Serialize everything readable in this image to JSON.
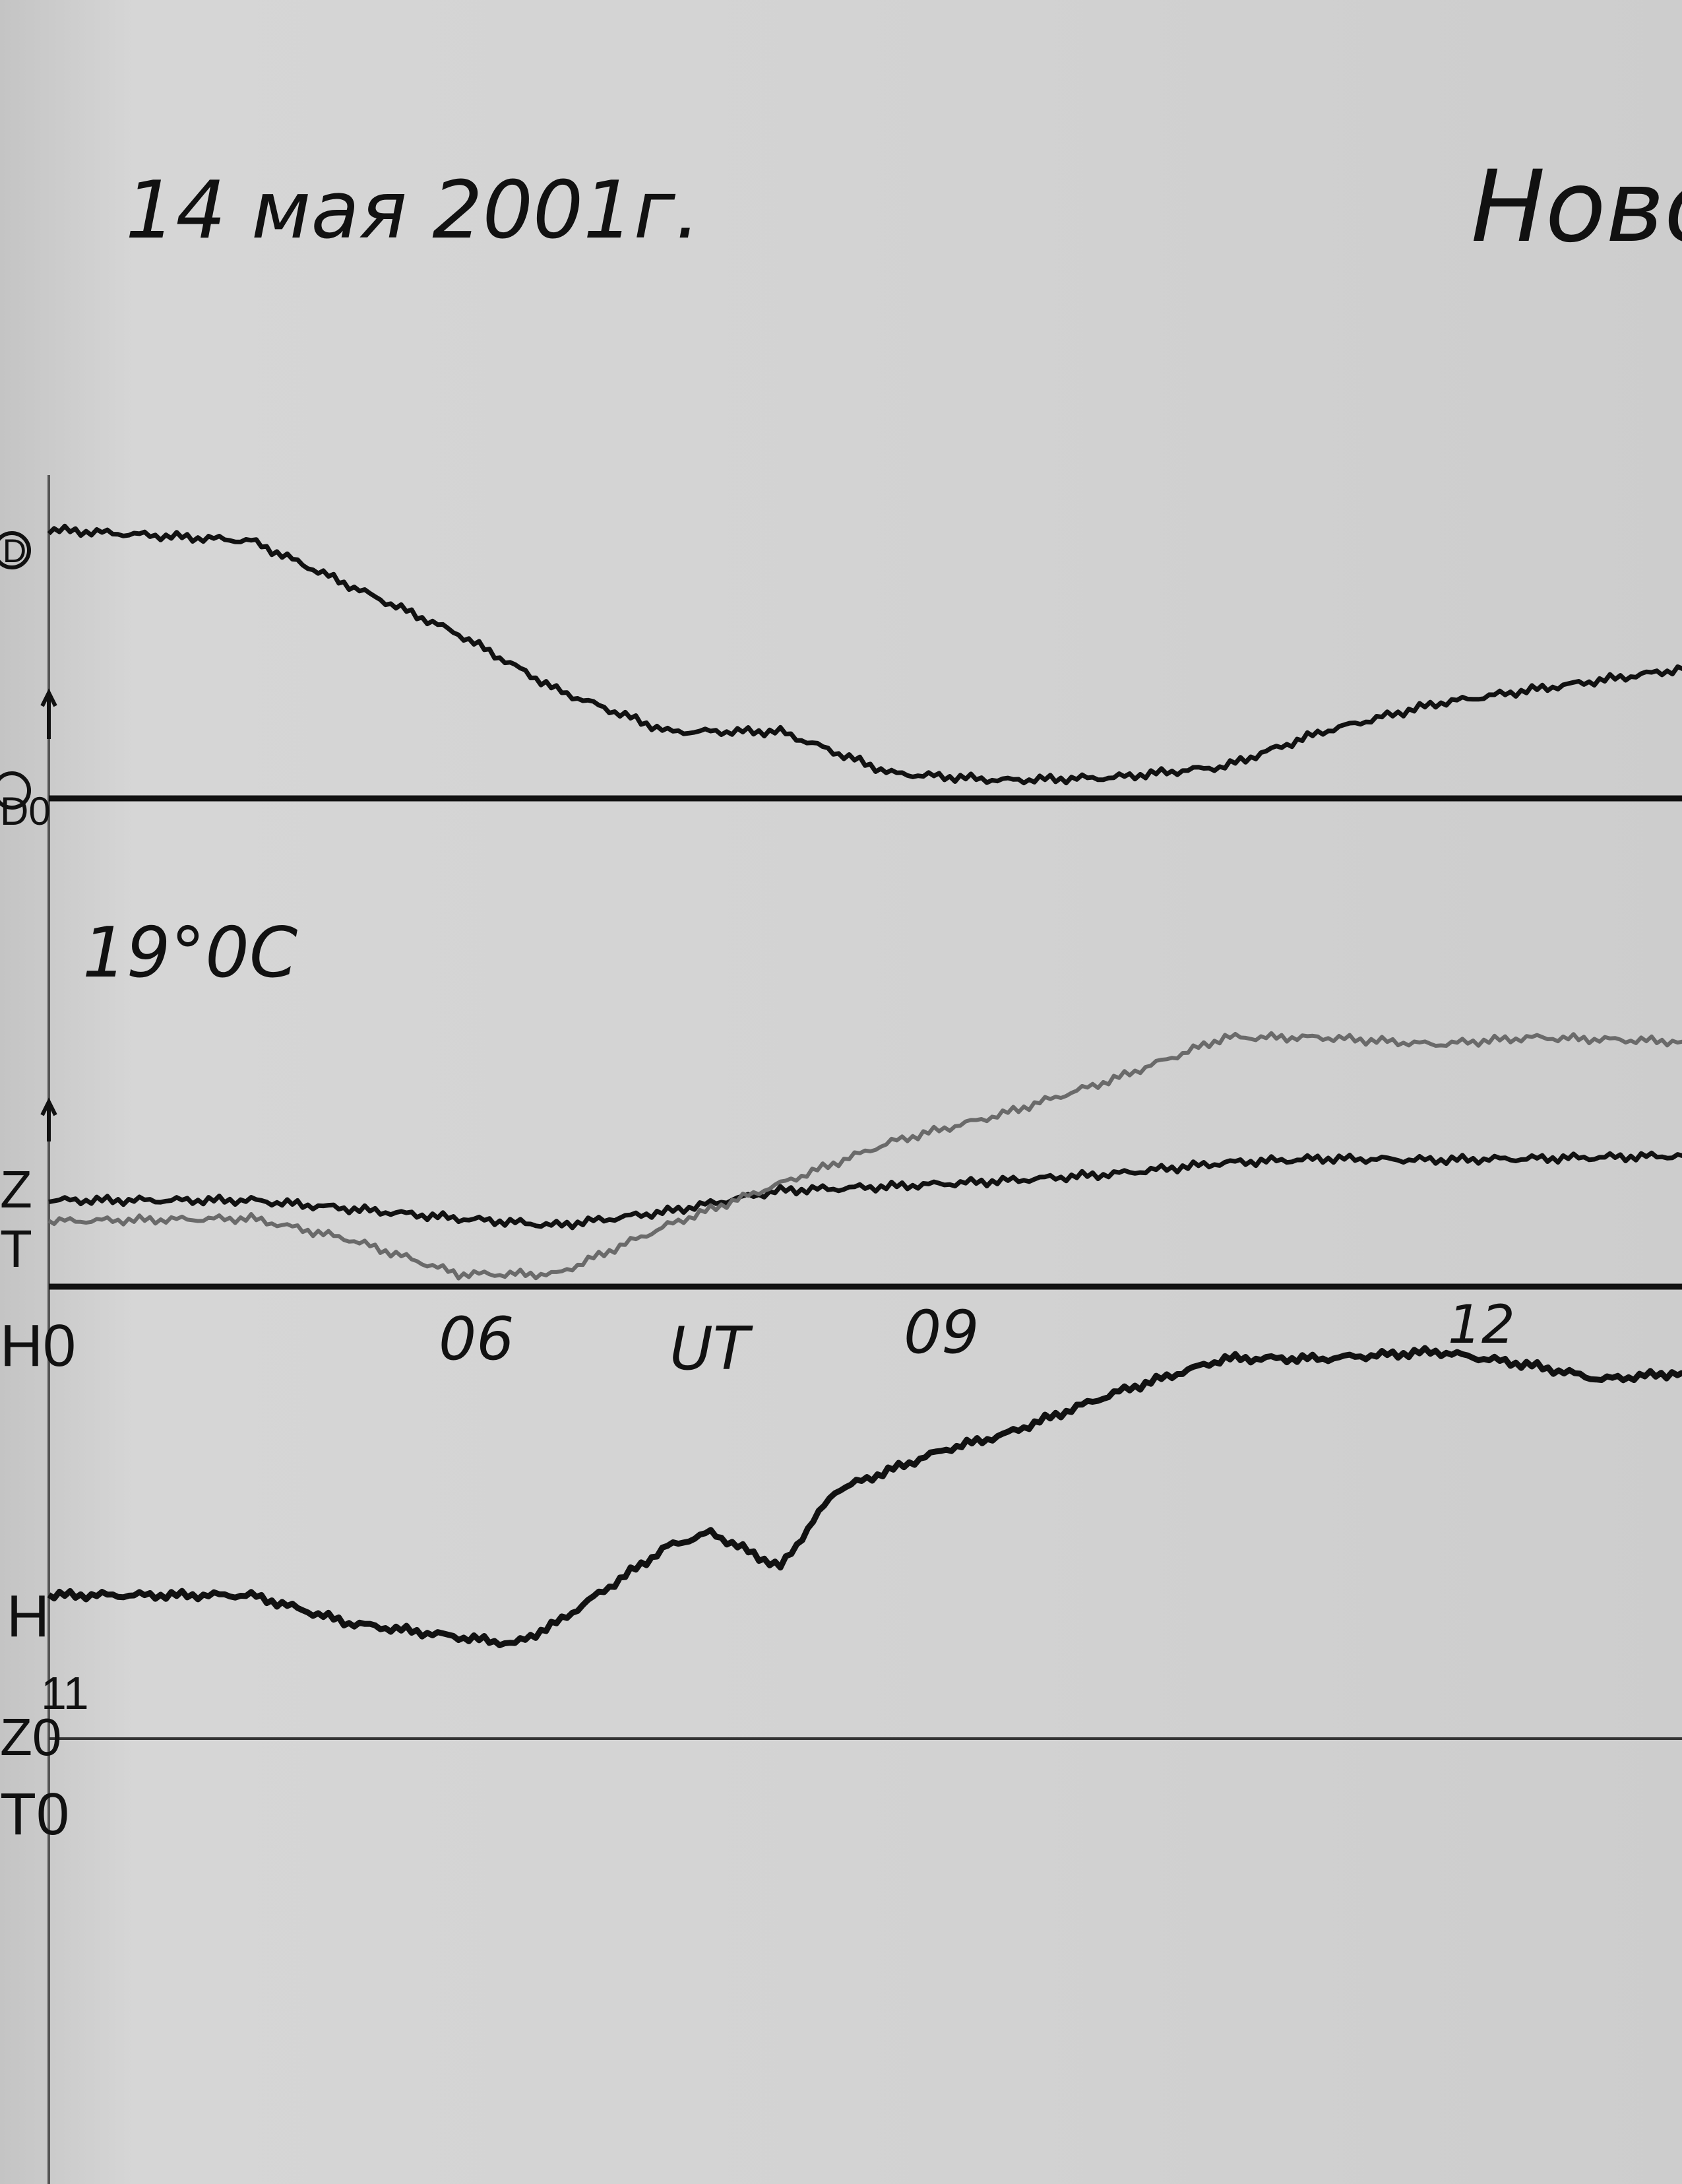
{
  "document": {
    "date_title": "14 мая 2001г.",
    "station_title": "Ново",
    "temperature": "19°0C"
  },
  "chart_data": [
    {
      "type": "line",
      "title": "",
      "xlabel": "UT",
      "x_ticks": [
        "06",
        "09",
        "12"
      ],
      "xlim": [
        3.36,
        13.2
      ],
      "grid": false,
      "channel_labels": {
        "d": "D",
        "d_base": "D0",
        "z": "Z",
        "t": "T",
        "h_base": "H0",
        "h": "H",
        "h_note": "11",
        "z_base": "Z0",
        "t_base": "T0"
      },
      "series": [
        {
          "name": "D",
          "color": "#111111",
          "x": [
            3.36,
            4.58,
            5.17,
            5.83,
            6.42,
            7.09,
            7.77,
            8.44,
            9.11,
            9.78,
            10.45,
            11.04,
            11.72,
            12.3,
            13.21
          ],
          "y": [
            19.3,
            18.5,
            15.3,
            11.8,
            7.8,
            4.8,
            4.8,
            1.8,
            1.3,
            1.5,
            2.3,
            4.8,
            6.8,
            7.8,
            9.3
          ]
        },
        {
          "name": "Z",
          "color": "#111111",
          "x": [
            3.36,
            4.58,
            5.17,
            5.83,
            6.42,
            7.09,
            7.77,
            8.44,
            9.11,
            9.78,
            10.45,
            11.04,
            11.72,
            12.3,
            13.21
          ],
          "y": [
            6.2,
            6.2,
            5.6,
            4.9,
            4.4,
            5.4,
            6.9,
            7.2,
            7.6,
            8.1,
            8.9,
            9.2,
            9.1,
            9.2,
            9.4
          ]
        },
        {
          "name": "T",
          "color": "#6a6a6a",
          "x": [
            3.36,
            4.58,
            5.17,
            5.83,
            6.42,
            7.09,
            7.77,
            8.44,
            9.11,
            9.78,
            10.45,
            11.04,
            11.72,
            12.3,
            13.21
          ],
          "y": [
            4.7,
            4.9,
            3.4,
            0.9,
            0.9,
            4.4,
            7.4,
            10.4,
            12.4,
            14.9,
            17.9,
            17.9,
            17.4,
            17.9,
            17.6
          ]
        },
        {
          "name": "H",
          "color": "#111111",
          "x": [
            3.36,
            4.58,
            5.17,
            5.83,
            6.17,
            6.42,
            7.09,
            7.35,
            7.77,
            8.1,
            8.77,
            9.11,
            9.78,
            10.45,
            11.04,
            11.72,
            12.3,
            12.72,
            13.21
          ],
          "y": [
            10.3,
            10.3,
            8.3,
            7.3,
            6.8,
            8.3,
            13.8,
            14.8,
            12.3,
            17.8,
            20.8,
            21.8,
            24.8,
            27.3,
            27.3,
            27.8,
            26.8,
            25.8,
            26.3
          ]
        }
      ]
    }
  ]
}
